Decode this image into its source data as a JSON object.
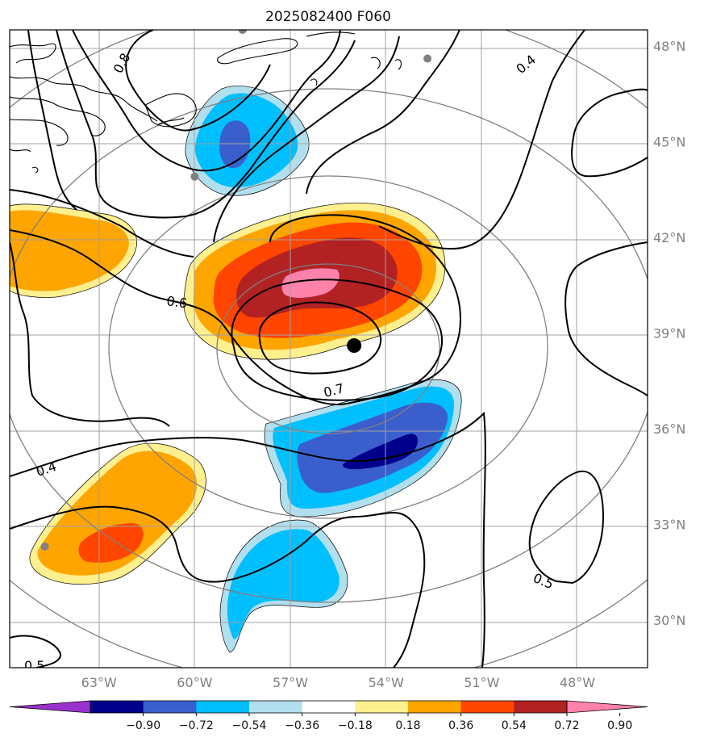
{
  "title": "2025082400 F060",
  "map": {
    "lon_labels": [
      "63°W",
      "60°W",
      "57°W",
      "54°W",
      "51°W",
      "48°W"
    ],
    "lat_labels": [
      "48°N",
      "45°N",
      "42°N",
      "39°N",
      "36°N",
      "33°N",
      "30°N"
    ],
    "lon_values": [
      -63,
      -60,
      -57,
      -54,
      -51,
      -48
    ],
    "lat_values": [
      48,
      45,
      42,
      39,
      36,
      33,
      30
    ],
    "extent": {
      "lon_min": -65.8,
      "lon_max": -45.8,
      "lat_min": 28.5,
      "lat_max": 48.5
    },
    "grid": true,
    "center_marker": {
      "lon": -55.0,
      "lat": 38.6
    },
    "station_markers": [
      {
        "lon": -58.5,
        "lat": 48.5
      },
      {
        "lon": -52.7,
        "lat": 47.6
      },
      {
        "lon": -60.0,
        "lat": 43.9
      },
      {
        "lon": -64.7,
        "lat": 32.3
      }
    ],
    "contour_labels": [
      "0.8",
      "0.4",
      "0.6",
      "0.7",
      "0.4",
      "0.5",
      "0.5"
    ]
  },
  "colorbar": {
    "ticks": [
      "−0.90",
      "−0.72",
      "−0.54",
      "−0.36",
      "−0.18",
      "0.18",
      "0.36",
      "0.54",
      "0.72",
      "0.90"
    ],
    "colors": [
      "#9932cc",
      "#00008b",
      "#3a5fcd",
      "#00bfff",
      "#b2dfee",
      "#ffffff",
      "#fff08f",
      "#ffa500",
      "#ff4500",
      "#b22222",
      "#ff82ab"
    ],
    "extend": "both"
  }
}
